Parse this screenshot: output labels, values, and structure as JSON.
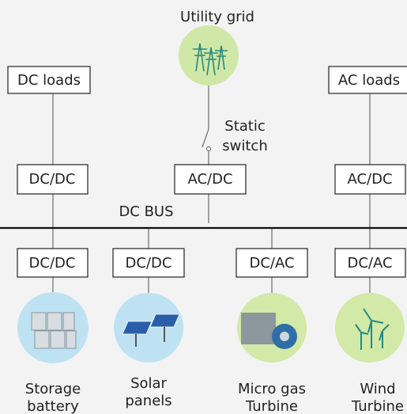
{
  "grid": {
    "label": "Utility grid"
  },
  "switch": {
    "lines": [
      "Static",
      "switch"
    ]
  },
  "bus": {
    "label": "DC BUS"
  },
  "upper_boxes": [
    {
      "label": "DC loads"
    },
    {
      "label": "AC loads"
    }
  ],
  "converters_top": [
    {
      "label": "DC/DC"
    },
    {
      "label": "AC/DC"
    },
    {
      "label": "AC/DC"
    }
  ],
  "converters_bottom": [
    {
      "label": "DC/DC"
    },
    {
      "label": "DC/DC"
    },
    {
      "label": "DC/AC"
    },
    {
      "label": "DC/AC"
    }
  ],
  "sources": [
    {
      "lines": [
        "Storage",
        "battery"
      ]
    },
    {
      "lines": [
        "Solar",
        "panels"
      ]
    },
    {
      "lines": [
        "Micro gas",
        "Turbine"
      ]
    },
    {
      "lines": [
        "Wind",
        "Turbine"
      ]
    }
  ]
}
